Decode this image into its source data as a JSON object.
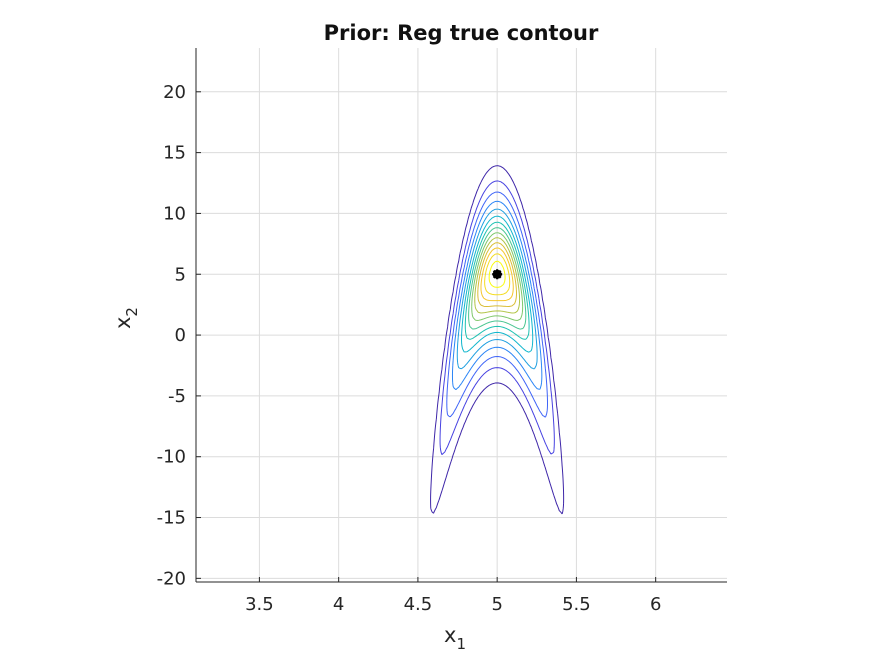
{
  "chart_data": {
    "type": "contour",
    "title": "Prior: Reg true contour",
    "xlabel": {
      "base": "x",
      "sub": "1"
    },
    "ylabel": {
      "base": "x",
      "sub": "2"
    },
    "xlim": [
      3.1,
      6.45
    ],
    "ylim": [
      -20.3,
      23.6
    ],
    "xticks": [
      3.5,
      4,
      4.5,
      5,
      5.5,
      6
    ],
    "xtick_labels": [
      "3.5",
      "4",
      "4.5",
      "5",
      "5.5",
      "6"
    ],
    "yticks": [
      -20,
      -15,
      -10,
      -5,
      0,
      5,
      10,
      15,
      20
    ],
    "ytick_labels": [
      "-20",
      "-15",
      "-10",
      "-5",
      "0",
      "5",
      "10",
      "15",
      "20"
    ],
    "grid": true,
    "box": false,
    "density": {
      "form": "banana",
      "center": [
        5.0,
        5.0
      ],
      "x_scale": 0.145,
      "curvature": 2.22,
      "y_scale": 3.08
    },
    "contour_levels": [
      0.015,
      0.045,
      0.09,
      0.15,
      0.22,
      0.3,
      0.38,
      0.46,
      0.54,
      0.62,
      0.7,
      0.78,
      0.86,
      0.94
    ],
    "colormap": [
      "#3e26a8",
      "#4742e1",
      "#3f64f7",
      "#2b85f6",
      "#1e9fe0",
      "#10b6cd",
      "#1ec1b2",
      "#4ac591",
      "#7ec76a",
      "#b1c344",
      "#d9bd35",
      "#f5c62c",
      "#f4dc22",
      "#f9fb0e"
    ],
    "marker": {
      "x": 5.0,
      "y": 5.0,
      "symbol": "*",
      "color": "#000000"
    }
  }
}
